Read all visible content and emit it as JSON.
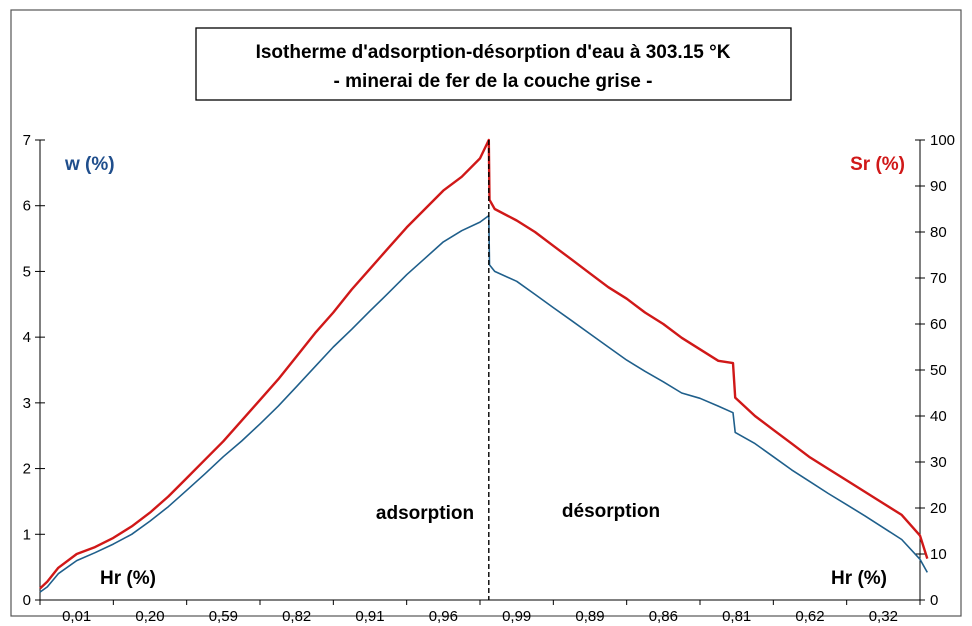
{
  "chart_data": {
    "type": "line",
    "title_lines": [
      "Isotherme d'adsorption-désorption d'eau à 303.15 °K",
      "- minerai de fer de la couche grise -"
    ],
    "left_axis_label": "w (%)",
    "right_axis_label": "Sr (%)",
    "x_axis_label_left": "Hr (%)",
    "x_axis_label_right": "Hr (%)",
    "x_tick_labels": [
      "0,01",
      "0,20",
      "0,59",
      "0,82",
      "0,91",
      "0,96",
      "0,99",
      "0,89",
      "0,86",
      "0,81",
      "0,62",
      "0,32"
    ],
    "left_ylim": [
      0,
      7
    ],
    "left_yticks": [
      "0",
      "1",
      "2",
      "3",
      "4",
      "5",
      "6",
      "7"
    ],
    "right_ylim": [
      0,
      100
    ],
    "right_yticks": [
      "0",
      "10",
      "20",
      "30",
      "40",
      "50",
      "60",
      "70",
      "80",
      "90",
      "100"
    ],
    "grid": false,
    "annotations": [
      "adsorption",
      "désorption"
    ],
    "colors": {
      "w": "#1f5f8b",
      "Sr": "#d01818",
      "divider": "#000000"
    },
    "series": [
      {
        "axis": "left",
        "color_key": "w",
        "x": [
          0,
          0.1,
          0.25,
          0.5,
          0.75,
          1.0,
          1.25,
          1.5,
          1.75,
          2.0,
          2.25,
          2.5,
          2.75,
          3.0,
          3.25,
          3.5,
          3.75,
          4.0,
          4.25,
          4.5,
          4.75,
          5.0,
          5.25,
          5.5,
          5.75,
          6.0,
          6.12,
          6.13,
          6.2,
          6.5,
          6.75,
          7.0,
          7.25,
          7.5,
          7.75,
          8.0,
          8.25,
          8.5,
          8.75,
          9.0,
          9.25,
          9.45,
          9.48,
          9.75,
          10.0,
          10.25,
          10.5,
          10.75,
          11.0,
          11.25,
          11.5,
          11.75,
          12.0,
          12.1
        ],
        "values": [
          0.12,
          0.2,
          0.4,
          0.6,
          0.72,
          0.85,
          1.0,
          1.2,
          1.42,
          1.67,
          1.92,
          2.18,
          2.42,
          2.68,
          2.95,
          3.25,
          3.55,
          3.85,
          4.12,
          4.4,
          4.67,
          4.95,
          5.2,
          5.45,
          5.62,
          5.75,
          5.85,
          5.1,
          5.0,
          4.85,
          4.65,
          4.45,
          4.25,
          4.05,
          3.85,
          3.65,
          3.48,
          3.32,
          3.15,
          3.07,
          2.95,
          2.85,
          2.55,
          2.38,
          2.18,
          1.98,
          1.8,
          1.62,
          1.45,
          1.28,
          1.1,
          0.92,
          0.62,
          0.42
        ]
      },
      {
        "axis": "right",
        "color_key": "Sr",
        "x": [
          0,
          0.1,
          0.25,
          0.5,
          0.75,
          1.0,
          1.25,
          1.5,
          1.75,
          2.0,
          2.25,
          2.5,
          2.75,
          3.0,
          3.25,
          3.5,
          3.75,
          4.0,
          4.25,
          4.5,
          4.75,
          5.0,
          5.25,
          5.5,
          5.75,
          6.0,
          6.12,
          6.13,
          6.2,
          6.5,
          6.75,
          7.0,
          7.25,
          7.5,
          7.75,
          8.0,
          8.25,
          8.5,
          8.75,
          9.0,
          9.25,
          9.45,
          9.48,
          9.75,
          10.0,
          10.25,
          10.5,
          10.75,
          11.0,
          11.25,
          11.5,
          11.75,
          12.0,
          12.1
        ],
        "values": [
          2.5,
          4,
          7,
          10,
          11.5,
          13.5,
          16,
          19,
          22.5,
          26.5,
          30.5,
          34.5,
          39,
          43.5,
          48,
          53,
          58,
          62.5,
          67.5,
          72,
          76.5,
          81,
          85,
          89,
          92,
          96,
          100,
          87,
          85,
          82.5,
          80,
          77,
          74,
          71,
          68,
          65.5,
          62.5,
          60,
          57,
          54.5,
          52,
          51.5,
          44,
          40,
          37,
          34,
          31,
          28.5,
          26,
          23.5,
          21,
          18.5,
          14,
          9
        ]
      }
    ]
  }
}
